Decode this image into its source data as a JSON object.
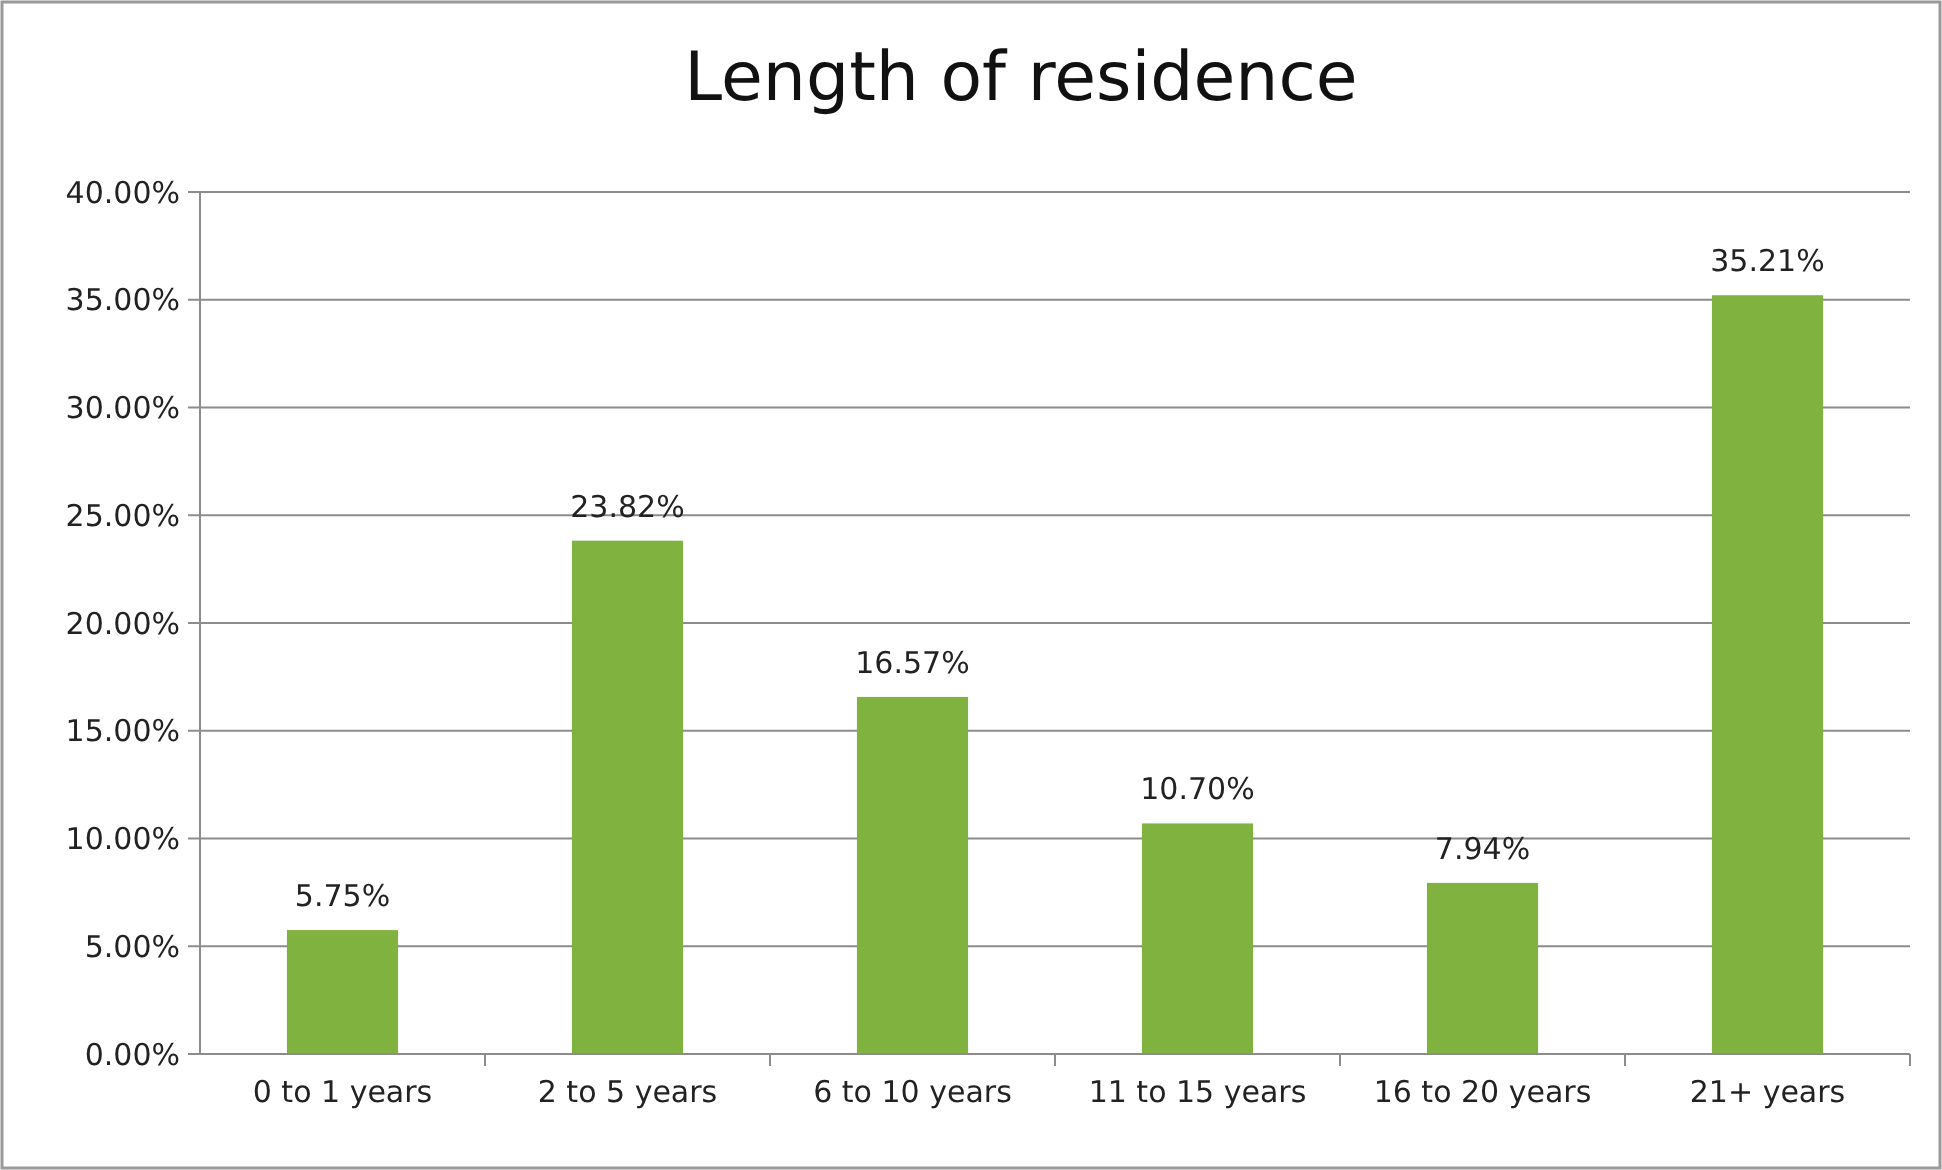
{
  "chart_data": {
    "type": "bar",
    "title": "Length of residence",
    "categories": [
      "0 to 1 years",
      "2 to 5 years",
      "6 to 10 years",
      "11 to 15 years",
      "16 to 20 years",
      "21+ years"
    ],
    "values": [
      5.75,
      23.82,
      16.57,
      10.7,
      7.94,
      35.21
    ],
    "value_labels": [
      "5.75%",
      "23.82%",
      "16.57%",
      "10.70%",
      "7.94%",
      "35.21%"
    ],
    "color": "#80b240",
    "ylim": [
      0,
      40
    ],
    "yticks": [
      {
        "value": 0,
        "label": "0.00%"
      },
      {
        "value": 5,
        "label": "5.00%"
      },
      {
        "value": 10,
        "label": "10.00%"
      },
      {
        "value": 15,
        "label": "15.00%"
      },
      {
        "value": 20,
        "label": "20.00%"
      },
      {
        "value": 25,
        "label": "25.00%"
      },
      {
        "value": 30,
        "label": "30.00%"
      },
      {
        "value": 35,
        "label": "35.00%"
      },
      {
        "value": 40,
        "label": "40.00%"
      }
    ],
    "grid": "y"
  }
}
